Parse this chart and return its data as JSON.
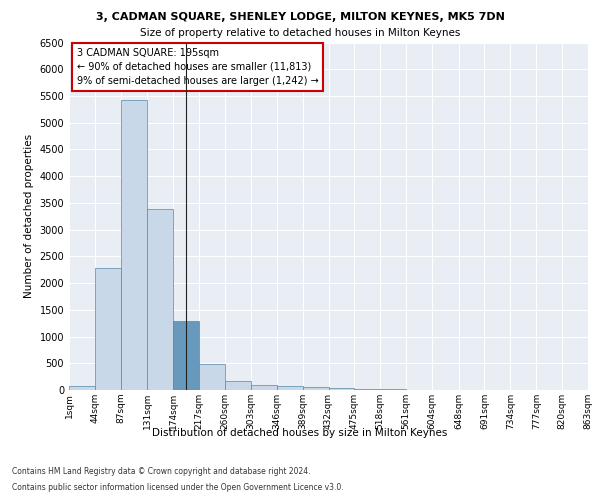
{
  "title1": "3, CADMAN SQUARE, SHENLEY LODGE, MILTON KEYNES, MK5 7DN",
  "title2": "Size of property relative to detached houses in Milton Keynes",
  "xlabel": "Distribution of detached houses by size in Milton Keynes",
  "ylabel": "Number of detached properties",
  "footnote1": "Contains HM Land Registry data © Crown copyright and database right 2024.",
  "footnote2": "Contains public sector information licensed under the Open Government Licence v3.0.",
  "annotation_title": "3 CADMAN SQUARE: 195sqm",
  "annotation_line1": "← 90% of detached houses are smaller (11,813)",
  "annotation_line2": "9% of semi-detached houses are larger (1,242) →",
  "subject_size": 195,
  "bar_edges": [
    1,
    44,
    87,
    131,
    174,
    217,
    260,
    303,
    346,
    389,
    432,
    475,
    518,
    561,
    604,
    648,
    691,
    734,
    777,
    820,
    863
  ],
  "bar_values": [
    70,
    2280,
    5430,
    3380,
    1290,
    480,
    175,
    95,
    70,
    50,
    30,
    20,
    10,
    5,
    5,
    3,
    2,
    1,
    1,
    0
  ],
  "bar_color_default": "#c8d8e8",
  "bar_color_highlight": "#6699bb",
  "bar_edge_color": "#5588aa",
  "annotation_box_color": "#cc0000",
  "bg_color": "#e8eef4",
  "grid_color": "#ffffff",
  "ylim": [
    0,
    6500
  ],
  "yticks": [
    0,
    500,
    1000,
    1500,
    2000,
    2500,
    3000,
    3500,
    4000,
    4500,
    5000,
    5500,
    6000,
    6500
  ]
}
